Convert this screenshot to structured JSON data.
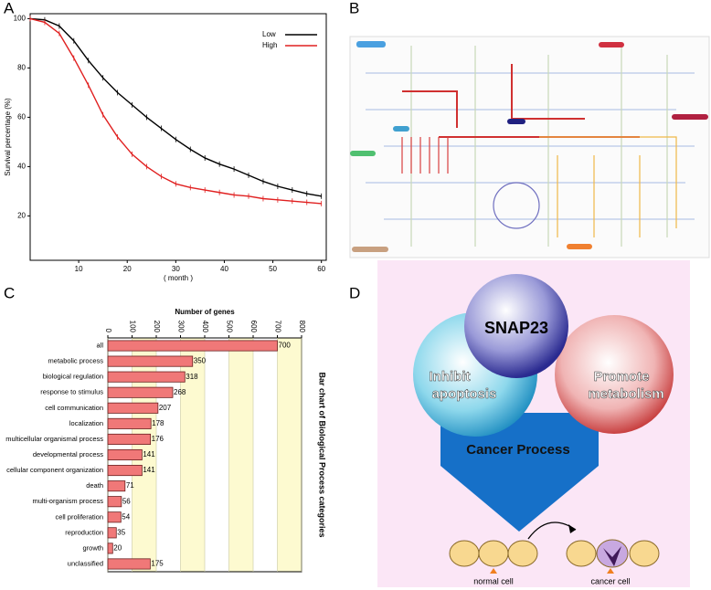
{
  "panel_labels": [
    "A",
    "B",
    "C",
    "D"
  ],
  "chart_data": [
    {
      "type": "line",
      "xlabel": "( month )",
      "ylabel": "Survival percentage (%)",
      "x": [
        0,
        3,
        6,
        9,
        12,
        15,
        18,
        21,
        24,
        27,
        30,
        33,
        36,
        39,
        42,
        45,
        48,
        51,
        54,
        57,
        60
      ],
      "series": [
        {
          "name": "Low",
          "color": "#000000",
          "values": [
            100,
            99.5,
            97,
            91,
            83,
            76,
            70,
            65,
            60,
            55.5,
            51,
            47,
            43.5,
            41,
            39,
            36.5,
            34,
            32,
            30.5,
            29,
            28
          ]
        },
        {
          "name": "High",
          "color": "#e02020",
          "values": [
            100,
            98.5,
            94,
            84,
            73,
            61,
            52,
            45,
            40,
            36,
            33,
            31.5,
            30.5,
            29.5,
            28.5,
            28,
            27,
            26.5,
            26,
            25.5,
            25
          ]
        }
      ],
      "xlim": [
        0,
        61
      ],
      "ylim": [
        2,
        102
      ],
      "xticks": [
        10,
        20,
        30,
        40,
        50,
        60
      ],
      "yticks": [
        20,
        40,
        60,
        80,
        100
      ],
      "legend": "upper right"
    },
    {
      "type": "barh",
      "title": "Number of genes",
      "side_title": "Bar chart of Biological Process categories",
      "categories": [
        "all",
        "metabolic process",
        "biological regulation",
        "response to stimulus",
        "cell communication",
        "localization",
        "multicellular organismal process",
        "developmental process",
        "cellular component organization",
        "death",
        "multi-organism process",
        "cell proliferation",
        "reproduction",
        "growth",
        "unclassified"
      ],
      "values": [
        700,
        350,
        318,
        268,
        207,
        178,
        176,
        141,
        141,
        71,
        56,
        54,
        35,
        20,
        175
      ],
      "color": "#f07878",
      "xlim": [
        0,
        800
      ],
      "xticks": [
        0,
        100,
        200,
        300,
        400,
        500,
        600,
        700,
        800
      ],
      "grid": true
    }
  ],
  "diagram": {
    "center": "SNAP23",
    "left": [
      "Inhibit",
      "apoptosis"
    ],
    "right": [
      "Promote",
      "metabolism"
    ],
    "arrow": "Cancer Process",
    "normal": "normal cell",
    "cancer": "cancer cell"
  }
}
